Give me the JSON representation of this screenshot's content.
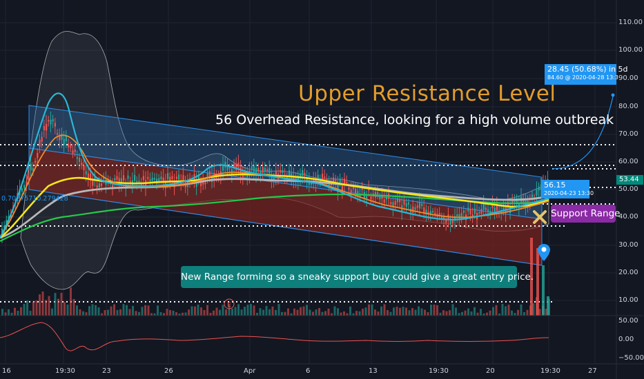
{
  "annotations": {
    "title": "Upper Resistance Level",
    "subtitle": "56 Overhead Resistance, looking for a high volume outbreak",
    "range_callout": "New Range forming so a sneaky support buy  could give a great entry price.",
    "support_callout": "Support Range",
    "measure_line1": "28.45 (50.68%) in 5d",
    "measure_line2": "84.60 @ 2020-04-28 13:3",
    "point_line1": "56.15",
    "point_line2": "2020-04-23 13:30",
    "indicator_values": "0.70275710.279428",
    "earnings_marker": "E"
  },
  "price_axis": {
    "ticks": [
      "110.00",
      "100.00",
      "90.00",
      "80.00",
      "70.00",
      "60.00",
      "50.00",
      "40.00",
      "30.00",
      "20.00",
      "10.00"
    ],
    "last_price": "53.44",
    "last_price_color": "#00897b"
  },
  "oscillator_axis": {
    "ticks": [
      "50.00",
      "0.00",
      "−50.00"
    ]
  },
  "time_axis": {
    "ticks": [
      "16",
      "19:30",
      "23",
      "26",
      "Apr",
      "6",
      "13",
      "19:30",
      "20",
      "19:30",
      "27"
    ]
  },
  "colors": {
    "background": "#131722",
    "title": "#e39d2a",
    "callout_green": "#0f7f7c",
    "callout_purple": "#8a2aa4",
    "label_blue": "#2196f3",
    "channel_blue": "#2b6cb0",
    "channel_red": "#7a2320",
    "candle_up": "#26a69a",
    "candle_down": "#ef5350",
    "ma_yellow": "#f5e61b",
    "ma_green": "#27c94b",
    "ma_gray": "#b8b8b8",
    "ma_orange": "#f08c2a",
    "ma_cyan": "#2bb7d3"
  },
  "icons": [
    "map-pin-icon",
    "x-mark-icon",
    "earnings-icon"
  ]
}
